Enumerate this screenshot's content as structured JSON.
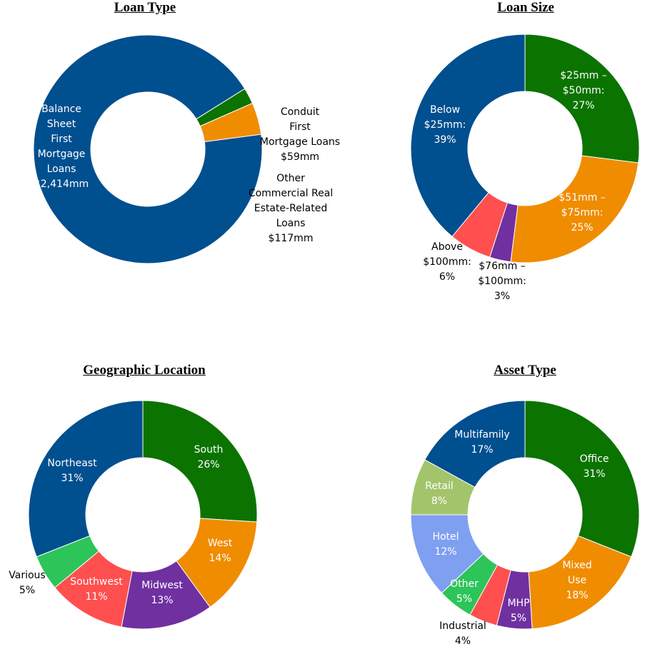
{
  "chart_data": [
    {
      "type": "pie",
      "variant": "donut",
      "title": "Loan Type",
      "slices": [
        {
          "label": [
            "Balance",
            "Sheet",
            "First",
            "Mortgage",
            "Loans",
            "$2,414mm"
          ],
          "value": 2414,
          "color": "#004f8f"
        },
        {
          "label": [
            "Conduit",
            "First",
            "Mortgage Loans",
            "$59mm"
          ],
          "value": 59,
          "color": "#0b7300"
        },
        {
          "label": [
            "Other",
            "Commercial Real",
            "Estate-Related",
            "Loans",
            "$117mm"
          ],
          "value": 117,
          "color": "#f08c00"
        }
      ]
    },
    {
      "type": "pie",
      "variant": "donut",
      "title": "Loan Size",
      "slices": [
        {
          "label": [
            "$25mm –",
            "$50mm:",
            "27%"
          ],
          "value": 27,
          "color": "#0b7300"
        },
        {
          "label": [
            "$51mm –",
            "$75mm:",
            "25%"
          ],
          "value": 25,
          "color": "#f08c00"
        },
        {
          "label": [
            "$76mm –",
            "$100mm:",
            "3%"
          ],
          "value": 3,
          "color": "#7030a0"
        },
        {
          "label": [
            "Above",
            "$100mm:",
            "6%"
          ],
          "value": 6,
          "color": "#ff4f4f"
        },
        {
          "label": [
            "Below",
            "$25mm:",
            "39%"
          ],
          "value": 39,
          "color": "#004f8f"
        }
      ]
    },
    {
      "type": "pie",
      "variant": "donut",
      "title": "Geographic Location",
      "slices": [
        {
          "label": [
            "South",
            "26%"
          ],
          "value": 26,
          "color": "#0b7300"
        },
        {
          "label": [
            "West",
            "14%"
          ],
          "value": 14,
          "color": "#f08c00"
        },
        {
          "label": [
            "Midwest",
            "13%"
          ],
          "value": 13,
          "color": "#7030a0"
        },
        {
          "label": [
            "Southwest",
            "11%"
          ],
          "value": 11,
          "color": "#ff4f4f"
        },
        {
          "label": [
            "Various",
            "5%"
          ],
          "value": 5,
          "color": "#2dc45a"
        },
        {
          "label": [
            "Northeast",
            "31%"
          ],
          "value": 31,
          "color": "#004f8f"
        }
      ]
    },
    {
      "type": "pie",
      "variant": "donut",
      "title": "Asset Type",
      "slices": [
        {
          "label": [
            "Office",
            "31%"
          ],
          "value": 31,
          "color": "#0b7300"
        },
        {
          "label": [
            "Mixed",
            "Use",
            "18%"
          ],
          "value": 18,
          "color": "#f08c00"
        },
        {
          "label": [
            "MHP",
            "5%"
          ],
          "value": 5,
          "color": "#7030a0"
        },
        {
          "label": [
            "Industrial",
            "4%"
          ],
          "value": 4,
          "color": "#ff4f4f"
        },
        {
          "label": [
            "Other",
            "5%"
          ],
          "value": 5,
          "color": "#2dc45a"
        },
        {
          "label": [
            "Hotel",
            "12%"
          ],
          "value": 12,
          "color": "#7f9ff0"
        },
        {
          "label": [
            "Retail",
            "8%"
          ],
          "value": 8,
          "color": "#a3c46b"
        },
        {
          "label": [
            "Multifamily",
            "17%"
          ],
          "value": 17,
          "color": "#004f8f"
        }
      ]
    }
  ]
}
